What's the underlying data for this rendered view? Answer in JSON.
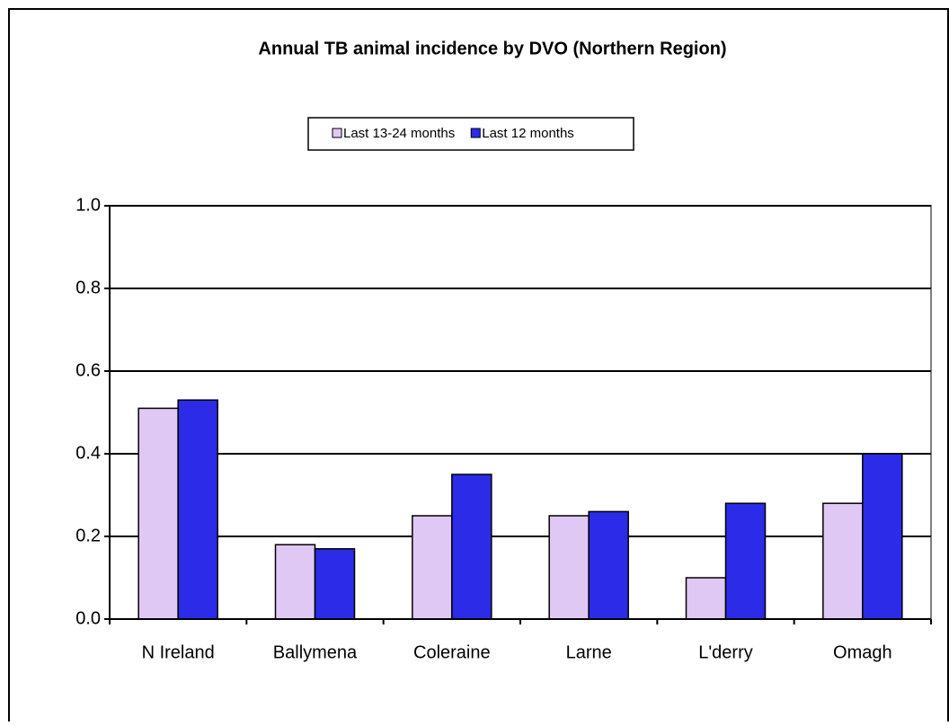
{
  "chart_data": {
    "type": "bar",
    "title": "Annual TB animal  incidence  by DVO (Northern Region)",
    "categories": [
      "N Ireland",
      "Ballymena",
      "Coleraine",
      "Larne",
      "L'derry",
      "Omagh"
    ],
    "series": [
      {
        "name": "Last 13-24 months",
        "color": "#e0c8f4",
        "values": [
          0.51,
          0.18,
          0.25,
          0.25,
          0.1,
          0.28
        ]
      },
      {
        "name": "Last 12 months",
        "color": "#2b2be8",
        "values": [
          0.53,
          0.17,
          0.35,
          0.26,
          0.28,
          0.4
        ]
      }
    ],
    "ylim": [
      0,
      1
    ],
    "yticks": [
      {
        "value": 0,
        "label": "0.0"
      },
      0.2,
      0.4,
      0.6,
      0.8,
      {
        "value": 1,
        "label": "1.0"
      }
    ],
    "grid": true,
    "legend": "top"
  }
}
